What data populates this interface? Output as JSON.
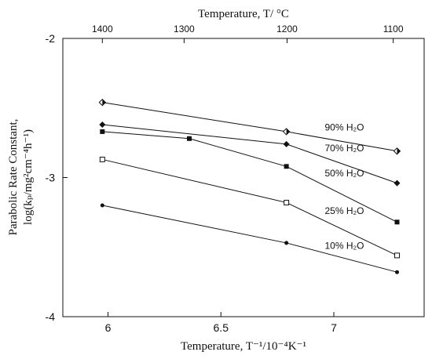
{
  "chart_data": {
    "type": "line",
    "xlabel": "Temperature, T⁻¹/10⁻⁴K⁻¹",
    "x2label": "Temperature, T/ °C",
    "ylabel_line1": "Parabolic Rate Constant,",
    "ylabel_line2": "log(kₚ/mg²cm⁻⁴h⁻¹)",
    "xlim": [
      5.8,
      7.4
    ],
    "ylim": [
      -4,
      -2
    ],
    "x_ticks": [
      {
        "value": 6,
        "label": "6"
      },
      {
        "value": 6.5,
        "label": "6.5"
      },
      {
        "value": 7,
        "label": "7"
      }
    ],
    "y_ticks": [
      {
        "value": -2,
        "label": "-2"
      },
      {
        "value": -3,
        "label": "-3"
      },
      {
        "value": -4,
        "label": "-4"
      }
    ],
    "x2_ticks": [
      {
        "value": 5.975,
        "label": "1400"
      },
      {
        "value": 6.337,
        "label": "1300"
      },
      {
        "value": 6.793,
        "label": "1200"
      },
      {
        "value": 7.263,
        "label": "1100"
      }
    ],
    "series": [
      {
        "name": "90% H₂O",
        "marker": "half-diamond",
        "x": [
          5.975,
          6.79,
          7.28
        ],
        "y": [
          -2.46,
          -2.67,
          -2.81
        ]
      },
      {
        "name": "70% H₂O",
        "marker": "diamond",
        "x": [
          5.975,
          6.79,
          7.28
        ],
        "y": [
          -2.62,
          -2.76,
          -3.04
        ]
      },
      {
        "name": "50% H₂O",
        "marker": "square",
        "x": [
          5.975,
          6.36,
          6.79,
          7.28
        ],
        "y": [
          -2.67,
          -2.72,
          -2.92,
          -3.32
        ]
      },
      {
        "name": "25% H₂O",
        "marker": "open-square",
        "x": [
          5.975,
          6.79,
          7.28
        ],
        "y": [
          -2.87,
          -3.18,
          -3.56
        ]
      },
      {
        "name": "10% H₂O",
        "marker": "circle",
        "x": [
          5.975,
          6.79,
          7.28
        ],
        "y": [
          -3.2,
          -3.47,
          -3.68
        ]
      }
    ],
    "series_labels": [
      {
        "series": 0,
        "x": 6.96,
        "y": -2.64
      },
      {
        "series": 1,
        "x": 6.96,
        "y": -2.79
      },
      {
        "series": 2,
        "x": 6.96,
        "y": -2.97
      },
      {
        "series": 3,
        "x": 6.96,
        "y": -3.24
      },
      {
        "series": 4,
        "x": 6.96,
        "y": -3.49
      }
    ],
    "grid": false,
    "legend": "inline labels"
  }
}
